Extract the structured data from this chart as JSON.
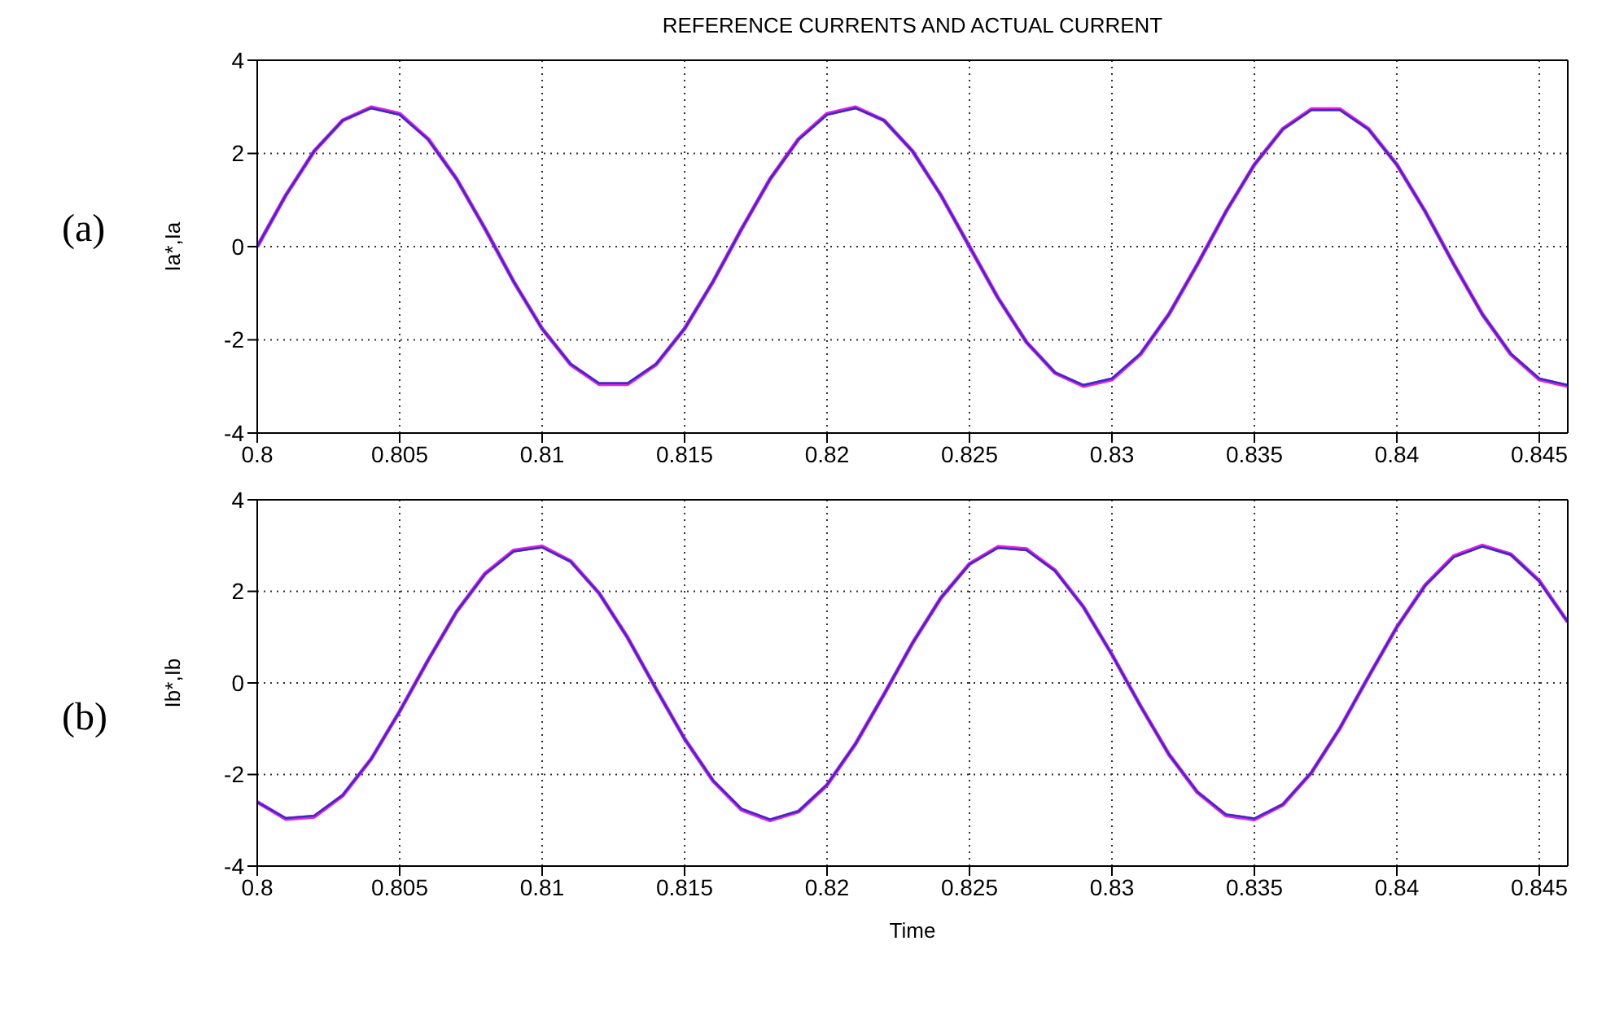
{
  "chart_data": [
    {
      "type": "line",
      "title": "REFERENCE CURRENTS AND ACTUAL CURRENT",
      "ylabel": "Ia*,Ia",
      "annotations": [
        "(a)"
      ],
      "grid": true,
      "legend": false,
      "marker": "none",
      "line_style": "solid",
      "xlim": [
        0.8,
        0.846
      ],
      "xticks": [
        0.8,
        0.805,
        0.81,
        0.815,
        0.82,
        0.825,
        0.83,
        0.835,
        0.84,
        0.845
      ],
      "ylim": [
        -4,
        4
      ],
      "yticks": [
        -4,
        -2,
        0,
        2,
        4
      ],
      "x": [
        0.8,
        0.801,
        0.802,
        0.803,
        0.804,
        0.805,
        0.806,
        0.807,
        0.808,
        0.809,
        0.81,
        0.811,
        0.812,
        0.813,
        0.814,
        0.815,
        0.816,
        0.817,
        0.818,
        0.819,
        0.82,
        0.821,
        0.822,
        0.823,
        0.824,
        0.825,
        0.826,
        0.827,
        0.828,
        0.829,
        0.83,
        0.831,
        0.832,
        0.833,
        0.834,
        0.835,
        0.836,
        0.837,
        0.838,
        0.839,
        0.84,
        0.841,
        0.842,
        0.843,
        0.844,
        0.845,
        0.846
      ],
      "series": [
        {
          "color": "#e020e0",
          "values": [
            0,
            1.1,
            2.05,
            2.71,
            2.99,
            2.85,
            2.31,
            1.45,
            0.38,
            -0.75,
            -1.76,
            -2.53,
            -2.95,
            -2.95,
            -2.53,
            -1.76,
            -0.75,
            0.38,
            1.45,
            2.31,
            2.85,
            2.99,
            2.71,
            2.05,
            1.1,
            0,
            -1.1,
            -2.05,
            -2.71,
            -2.99,
            -2.85,
            -2.31,
            -1.45,
            -0.38,
            0.75,
            1.76,
            2.53,
            2.95,
            2.95,
            2.53,
            1.76,
            0.75,
            -0.38,
            -1.45,
            -2.31,
            -2.85,
            -2.99
          ]
        },
        {
          "color": "#3030c0",
          "values": [
            0,
            1.1,
            2.05,
            2.71,
            2.97,
            2.83,
            2.3,
            1.45,
            0.38,
            -0.75,
            -1.76,
            -2.52,
            -2.93,
            -2.93,
            -2.52,
            -1.76,
            -0.75,
            0.38,
            1.45,
            2.3,
            2.83,
            2.97,
            2.71,
            2.05,
            1.1,
            0,
            -1.1,
            -2.05,
            -2.7,
            -2.97,
            -2.83,
            -2.3,
            -1.45,
            -0.38,
            0.75,
            1.76,
            2.52,
            2.93,
            2.93,
            2.52,
            1.76,
            0.75,
            -0.38,
            -1.45,
            -2.3,
            -2.83,
            -2.97
          ]
        }
      ]
    },
    {
      "type": "line",
      "xlabel": "Time",
      "ylabel": "Ib*,Ib",
      "annotations": [
        "(b)"
      ],
      "grid": true,
      "legend": false,
      "marker": "none",
      "line_style": "solid",
      "xlim": [
        0.8,
        0.846
      ],
      "xticks": [
        0.8,
        0.805,
        0.81,
        0.815,
        0.82,
        0.825,
        0.83,
        0.835,
        0.84,
        0.845
      ],
      "ylim": [
        -4,
        4
      ],
      "yticks": [
        -4,
        -2,
        0,
        2,
        4
      ],
      "x": [
        0.8,
        0.801,
        0.802,
        0.803,
        0.804,
        0.805,
        0.806,
        0.807,
        0.808,
        0.809,
        0.81,
        0.811,
        0.812,
        0.813,
        0.814,
        0.815,
        0.816,
        0.817,
        0.818,
        0.819,
        0.82,
        0.821,
        0.822,
        0.823,
        0.824,
        0.825,
        0.826,
        0.827,
        0.828,
        0.829,
        0.83,
        0.831,
        0.832,
        0.833,
        0.834,
        0.835,
        0.836,
        0.837,
        0.838,
        0.839,
        0.84,
        0.841,
        0.842,
        0.843,
        0.844,
        0.845,
        0.846
      ],
      "series": [
        {
          "color": "#e020e0",
          "values": [
            -2.6,
            -2.97,
            -2.92,
            -2.46,
            -1.66,
            -0.62,
            0.5,
            1.56,
            2.39,
            2.89,
            2.98,
            2.66,
            1.96,
            0.99,
            -0.13,
            -1.22,
            -2.14,
            -2.77,
            -3,
            -2.81,
            -2.23,
            -1.33,
            -0.25,
            0.87,
            1.86,
            2.6,
            2.97,
            2.92,
            2.46,
            1.66,
            0.62,
            -0.5,
            -1.56,
            -2.39,
            -2.89,
            -2.98,
            -2.66,
            -1.96,
            -0.99,
            0.13,
            1.22,
            2.14,
            2.77,
            3,
            2.81,
            2.23,
            1.33
          ]
        },
        {
          "color": "#3030c0",
          "values": [
            -2.6,
            -2.95,
            -2.9,
            -2.45,
            -1.66,
            -0.62,
            0.5,
            1.56,
            2.38,
            2.87,
            2.96,
            2.65,
            1.96,
            0.99,
            -0.13,
            -1.22,
            -2.13,
            -2.75,
            -2.98,
            -2.8,
            -2.22,
            -1.33,
            -0.25,
            0.87,
            1.86,
            2.59,
            2.95,
            2.9,
            2.45,
            1.66,
            0.62,
            -0.5,
            -1.56,
            -2.38,
            -2.87,
            -2.96,
            -2.65,
            -1.96,
            -0.99,
            0.13,
            1.22,
            2.13,
            2.75,
            2.98,
            2.8,
            2.22,
            1.33
          ]
        }
      ]
    }
  ]
}
